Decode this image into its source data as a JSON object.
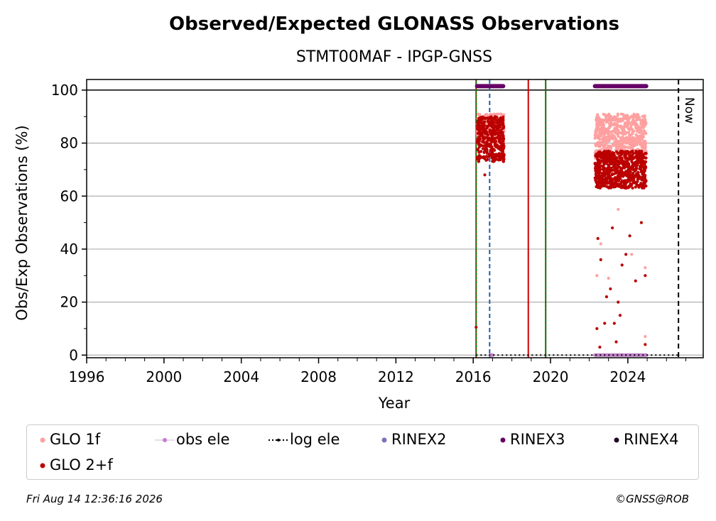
{
  "chart_data": {
    "type": "scatter",
    "title": "Observed/Expected GLONASS Observations",
    "subtitle": "STMT00MAF - IPGP-GNSS",
    "xlabel": "Year",
    "ylabel": "Obs/Exp Observations (%)",
    "xlim": [
      1996,
      2027.9
    ],
    "ylim": [
      -1,
      104
    ],
    "xticks": [
      "1996",
      "2000",
      "2004",
      "2008",
      "2012",
      "2016",
      "2020",
      "2024"
    ],
    "yticks": [
      "0",
      "20",
      "40",
      "60",
      "80",
      "100"
    ],
    "grid": "horizontal",
    "legend_placement": "below",
    "now_label": "Now",
    "now_year": 2026.62,
    "vertical_lines": [
      {
        "x": 2016.15,
        "style": "solid",
        "color": "#007700"
      },
      {
        "x": 2016.85,
        "style": "dashed",
        "color": "#1f5fa8"
      },
      {
        "x": 2018.85,
        "style": "solid",
        "color": "#cc0000"
      },
      {
        "x": 2019.75,
        "style": "solid",
        "color": "#007700"
      }
    ],
    "series": [
      {
        "name": "GLO 1f",
        "color": "#ffa0a0",
        "segments": [
          {
            "x": [
              2016.2,
              2017.6
            ],
            "y_band": [
              80,
              91
            ]
          },
          {
            "x": [
              2022.3,
              2024.95
            ],
            "y_band": [
              74,
              91
            ]
          }
        ],
        "outliers": [
          [
            2022.4,
            30
          ],
          [
            2022.6,
            42
          ],
          [
            2023.0,
            29
          ],
          [
            2023.5,
            55
          ],
          [
            2024.9,
            7
          ],
          [
            2024.9,
            33
          ],
          [
            2024.2,
            38
          ]
        ]
      },
      {
        "name": "GLO 2+f",
        "color": "#bb0000",
        "segments": [
          {
            "x": [
              2016.2,
              2017.6
            ],
            "y_band": [
              73,
              90
            ]
          },
          {
            "x": [
              2022.3,
              2024.95
            ],
            "y_band": [
              63,
              77
            ]
          }
        ],
        "outliers": [
          [
            2016.15,
            10.5
          ],
          [
            2016.6,
            68
          ],
          [
            2022.4,
            10
          ],
          [
            2022.55,
            3
          ],
          [
            2022.8,
            12
          ],
          [
            2022.9,
            22
          ],
          [
            2023.1,
            25
          ],
          [
            2023.3,
            12
          ],
          [
            2023.4,
            5
          ],
          [
            2023.5,
            20
          ],
          [
            2023.6,
            15
          ],
          [
            2023.9,
            38
          ],
          [
            2024.1,
            45
          ],
          [
            2024.4,
            28
          ],
          [
            2024.7,
            50
          ],
          [
            2024.9,
            4
          ],
          [
            2024.9,
            30
          ],
          [
            2022.45,
            44
          ],
          [
            2022.6,
            36
          ],
          [
            2023.2,
            48
          ],
          [
            2023.7,
            34
          ]
        ]
      },
      {
        "name": "obs ele",
        "color": "#c080c8",
        "segments": [
          {
            "x": [
              2016.9,
              2017.0
            ],
            "y": 0
          },
          {
            "x": [
              2022.3,
              2024.95
            ],
            "y": 0
          }
        ]
      },
      {
        "name": "log ele",
        "color": "#000000",
        "segments": [
          {
            "x": [
              2016.15,
              2026.62
            ],
            "y": 0
          }
        ]
      },
      {
        "name": "RINEX2",
        "color": "#8070b8",
        "segments": []
      },
      {
        "name": "RINEX3",
        "color": "#660066",
        "segments": [
          {
            "x": [
              2016.2,
              2017.55
            ],
            "y": 101.5
          },
          {
            "x": [
              2022.3,
              2024.95
            ],
            "y": 101.5
          }
        ]
      },
      {
        "name": "RINEX4",
        "color": "#220022",
        "segments": []
      }
    ]
  },
  "footer": {
    "timestamp": "Fri Aug 14 12:36:16 2026",
    "credit": "©GNSS@ROB"
  },
  "legend": [
    {
      "label": "GLO 1f",
      "marker": "dot",
      "color": "#ffa0a0"
    },
    {
      "label": "obs ele",
      "marker": "line-dot",
      "color": "#c080c8"
    },
    {
      "label": "log ele",
      "marker": "dotted-line",
      "color": "#000000"
    },
    {
      "label": "RINEX2",
      "marker": "dot",
      "color": "#8070b8"
    },
    {
      "label": "RINEX3",
      "marker": "dot",
      "color": "#660066"
    },
    {
      "label": "RINEX4",
      "marker": "dot",
      "color": "#220022"
    },
    {
      "label": "GLO 2+f",
      "marker": "dot",
      "color": "#bb0000"
    }
  ]
}
